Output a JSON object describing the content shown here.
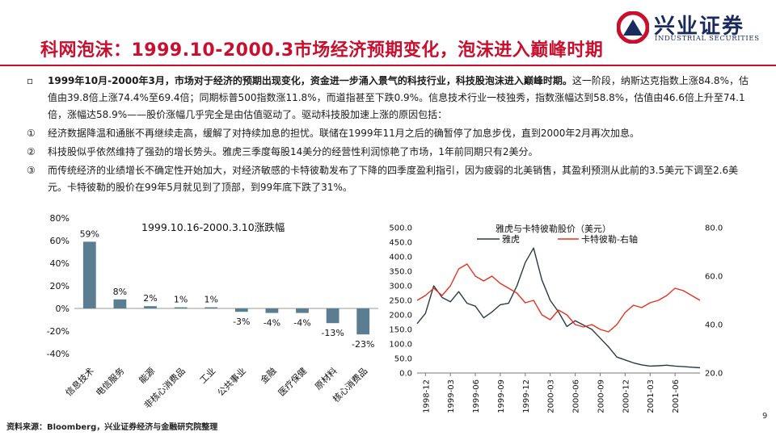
{
  "header": {
    "title": "科网泡沫：1999.10-2000.3市场经济预期变化，泡沫进入巅峰时期",
    "logo_cn": "兴业证券",
    "logo_en": "INDUSTRIAL SECURITIES"
  },
  "body": {
    "intro_bullet": "▫",
    "intro_bold": "1999年10月-2000年3月，市场对于经济的预期出现变化，资金进一步涌入景气的科技行业，科技股泡沫进入巅峰时期。",
    "intro_rest": "这一阶段，纳斯达克指数上涨84.8%，估值由39.8倍上涨74.4%至69.4倍；同期标普500指数涨11.8%，而道指甚至下跌0.9%。信息技术行业一枝独秀，指数涨幅达到58.8%，估值由46.6倍上升至74.1倍，涨幅达58.9%——股价涨幅几乎完全是由估值驱动了。驱动科技股加速上涨的原因包括：",
    "points": [
      {
        "marker": "①",
        "text": "经济数据降温和通胀不再继续走高，缓解了对持续加息的担忧。联储在1999年11月之后的确暂停了加息步伐，直到2000年2月再次加息。"
      },
      {
        "marker": "②",
        "text": "科技股似乎依然维持了强劲的增长势头。雅虎三季度每股14美分的经营性利润惊艳了市场，1年前同期只有2美分。"
      },
      {
        "marker": "③",
        "text": "而传统经济的业绩增长不确定性开始加大，对经济敏感的卡特彼勒发布了下降的四季度盈利指引，因为疲弱的北美销售，其盈利预测从此前的3.5美元下调至2.6美元。卡特彼勒的股价在99年5月就见到了顶部，到99年底下跌了31%。"
      }
    ]
  },
  "chart_data": [
    {
      "type": "bar",
      "title": "1999.10.16-2000.3.10涨跌幅",
      "categories": [
        "信息技术",
        "电信服务",
        "能源",
        "非核心消费品",
        "工业",
        "公共事业",
        "金融",
        "医疗保健",
        "原材料",
        "核心消费品"
      ],
      "values": [
        59,
        8,
        2,
        1,
        1,
        -3,
        -4,
        -4,
        -13,
        -23
      ],
      "value_labels": [
        "59%",
        "8%",
        "2%",
        "1%",
        "1%",
        "-3%",
        "-4%",
        "-4%",
        "-13%",
        "-23%"
      ],
      "ylim": [
        -40,
        80
      ],
      "yticks": [
        "80%",
        "60%",
        "40%",
        "20%",
        "0%",
        "-20%",
        "-40%"
      ],
      "bar_color": "#5a7d92",
      "grid": false
    },
    {
      "type": "line",
      "title": "雅虎与卡特彼勒股价（美元）",
      "xticks": [
        "1998-12",
        "1999-03",
        "1999-06",
        "1999-09",
        "1999-12",
        "2000-03",
        "2000-06",
        "2000-09",
        "2000-12",
        "2001-03",
        "2001-06"
      ],
      "x_range": [
        "1998-11",
        "2001-09"
      ],
      "y_left": {
        "ylim": [
          0,
          500
        ],
        "ticks": [
          "0.0",
          "50.0",
          "100.0",
          "150.0",
          "200.0",
          "250.0",
          "300.0",
          "350.0",
          "400.0",
          "450.0",
          "500.0"
        ]
      },
      "y_right": {
        "ylim": [
          20,
          80
        ],
        "ticks": [
          "20.0",
          "40.0",
          "60.0",
          "80.0"
        ]
      },
      "legend_position": "top-left",
      "series": [
        {
          "name": "雅虎",
          "axis": "left",
          "color": "#2b3a42",
          "points": [
            [
              "1998-11",
              170
            ],
            [
              "1998-12",
              205
            ],
            [
              "1999-01",
              300
            ],
            [
              "1999-02",
              260
            ],
            [
              "1999-03",
              245
            ],
            [
              "1999-04",
              280
            ],
            [
              "1999-05",
              240
            ],
            [
              "1999-06",
              230
            ],
            [
              "1999-07",
              190
            ],
            [
              "1999-08",
              210
            ],
            [
              "1999-09",
              235
            ],
            [
              "1999-10",
              240
            ],
            [
              "1999-11",
              300
            ],
            [
              "1999-12",
              380
            ],
            [
              "2000-01",
              430
            ],
            [
              "2000-02",
              320
            ],
            [
              "2000-03",
              250
            ],
            [
              "2000-04",
              210
            ],
            [
              "2000-05",
              160
            ],
            [
              "2000-06",
              180
            ],
            [
              "2000-07",
              165
            ],
            [
              "2000-08",
              150
            ],
            [
              "2000-09",
              120
            ],
            [
              "2000-10",
              90
            ],
            [
              "2000-11",
              55
            ],
            [
              "2000-12",
              45
            ],
            [
              "2001-01",
              35
            ],
            [
              "2001-02",
              28
            ],
            [
              "2001-03",
              24
            ],
            [
              "2001-04",
              25
            ],
            [
              "2001-05",
              27
            ],
            [
              "2001-06",
              24
            ],
            [
              "2001-07",
              22
            ],
            [
              "2001-08",
              20
            ],
            [
              "2001-09",
              18
            ]
          ]
        },
        {
          "name": "卡特彼勒-右轴",
          "axis": "right",
          "color": "#e8301e",
          "points": [
            [
              "1998-11",
              50
            ],
            [
              "1998-12",
              52
            ],
            [
              "1999-01",
              55
            ],
            [
              "1999-02",
              52
            ],
            [
              "1999-03",
              56
            ],
            [
              "1999-04",
              63
            ],
            [
              "1999-05",
              65
            ],
            [
              "1999-06",
              60
            ],
            [
              "1999-07",
              58
            ],
            [
              "1999-08",
              60
            ],
            [
              "1999-09",
              57
            ],
            [
              "1999-10",
              55
            ],
            [
              "1999-11",
              53
            ],
            [
              "1999-12",
              49
            ],
            [
              "2000-01",
              50
            ],
            [
              "2000-02",
              44
            ],
            [
              "2000-03",
              42
            ],
            [
              "2000-04",
              46
            ],
            [
              "2000-05",
              44
            ],
            [
              "2000-06",
              40
            ],
            [
              "2000-07",
              39
            ],
            [
              "2000-08",
              40
            ],
            [
              "2000-09",
              38
            ],
            [
              "2000-10",
              37
            ],
            [
              "2000-11",
              40
            ],
            [
              "2000-12",
              45
            ],
            [
              "2001-01",
              48
            ],
            [
              "2001-02",
              47
            ],
            [
              "2001-03",
              49
            ],
            [
              "2001-04",
              50
            ],
            [
              "2001-05",
              52
            ],
            [
              "2001-06",
              55
            ],
            [
              "2001-07",
              54
            ],
            [
              "2001-08",
              52
            ],
            [
              "2001-09",
              50
            ]
          ]
        }
      ]
    }
  ],
  "footer": {
    "source": "资料来源：Bloomberg，兴业证券经济与金融研究院整理",
    "page": "9"
  }
}
